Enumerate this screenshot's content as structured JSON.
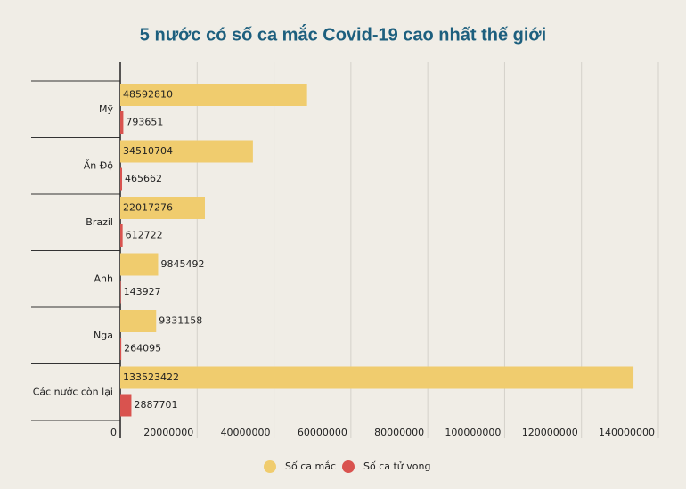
{
  "chart_data": {
    "type": "hbar",
    "title": "5 nước có số ca mắc Covid-19 cao nhất thế giới",
    "categories": [
      "Mỹ",
      "Ấn Độ",
      "Brazil",
      "Anh",
      "Nga",
      "Các nước còn lại"
    ],
    "series": [
      {
        "name": "Số ca mắc",
        "color": "#f0cc6e",
        "values": [
          48592810,
          34510704,
          22017276,
          9845492,
          9331158,
          133523422
        ]
      },
      {
        "name": "Số ca tử vong",
        "color": "#d9534f",
        "values": [
          793651,
          465662,
          612722,
          143927,
          264095,
          2887701
        ]
      }
    ],
    "xlim": [
      0,
      140000000
    ],
    "xticks": [
      0,
      20000000,
      40000000,
      60000000,
      80000000,
      100000000,
      120000000,
      140000000
    ],
    "grid": true
  }
}
